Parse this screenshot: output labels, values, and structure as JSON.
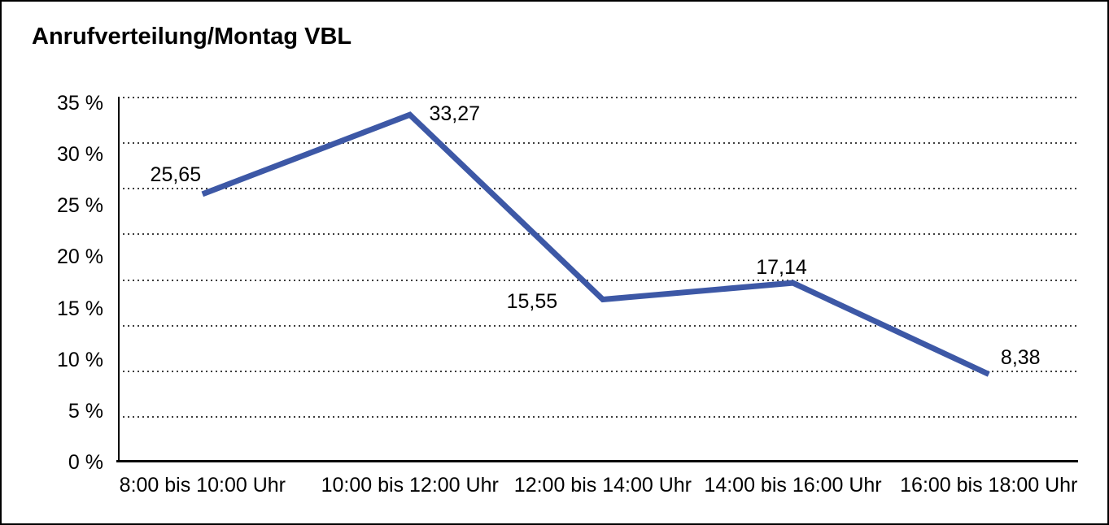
{
  "chart_data": {
    "type": "line",
    "title": "Anrufverteilung/Montag VBL",
    "categories": [
      "8:00 bis 10:00 Uhr",
      "10:00 bis 12:00 Uhr",
      "12:00 bis 14:00 Uhr",
      "14:00 bis 16:00 Uhr",
      "16:00 bis 18:00 Uhr"
    ],
    "values": [
      25.65,
      33.27,
      15.55,
      17.14,
      8.38
    ],
    "value_labels": [
      "25,65",
      "33,27",
      "15,55",
      "17,14",
      "8,38"
    ],
    "y_ticks": [
      "35 %",
      "30 %",
      "25 %",
      "20 %",
      "15 %",
      "10 %",
      "5 %",
      "0 %"
    ],
    "ylim": [
      0,
      35
    ],
    "xlabel": "",
    "ylabel": "",
    "legend": "none",
    "grid": "horizontal-dotted",
    "line_color": "#3d58a6"
  }
}
